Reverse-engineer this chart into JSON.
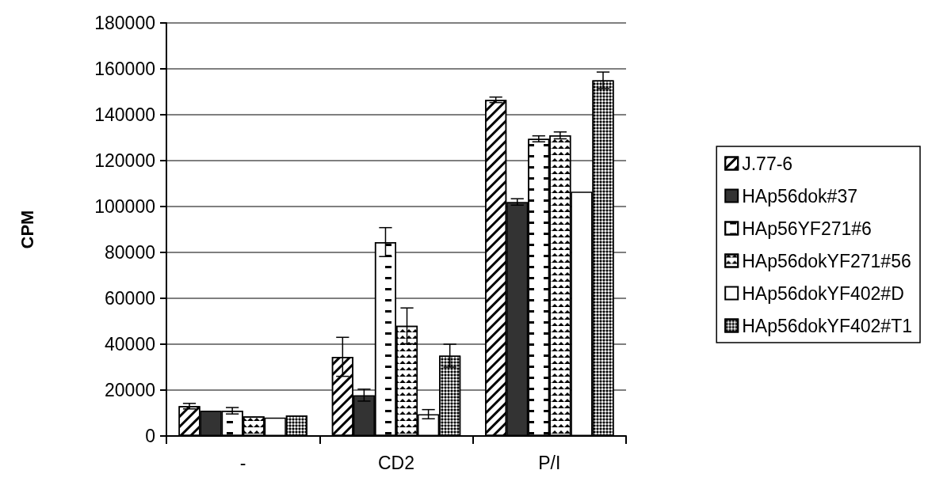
{
  "chart_data": {
    "type": "bar",
    "ylabel": "CPM",
    "categories": [
      "-",
      "CD2",
      "P/I"
    ],
    "series": [
      {
        "name": "J.77-6",
        "color": "#ffffff",
        "values": [
          13000,
          34500,
          146500
        ],
        "errors": [
          1200,
          8500,
          1200
        ]
      },
      {
        "name": "HAp56dok#37",
        "color": "#333333",
        "values": [
          11000,
          17800,
          102000
        ],
        "errors": [
          null,
          2600,
          1400
        ]
      },
      {
        "name": "HAp56YF271#6",
        "color": "#ffffff",
        "values": [
          11000,
          84500,
          129500
        ],
        "errors": [
          1400,
          6300,
          1300
        ]
      },
      {
        "name": "HAp56dokYF271#56",
        "color": "#ffffff",
        "values": [
          8500,
          48000,
          131000
        ],
        "errors": [
          null,
          7800,
          1500
        ]
      },
      {
        "name": "HAp56dokYF402#D",
        "color": "#ffffff",
        "values": [
          8000,
          9500,
          106500
        ],
        "errors": [
          null,
          2000,
          null
        ]
      },
      {
        "name": "HAp56dokYF402#T1",
        "color": "#ffffff",
        "values": [
          9000,
          35000,
          155000
        ],
        "errors": [
          null,
          5000,
          3600
        ]
      }
    ],
    "ylim": [
      0,
      180000
    ],
    "yticks": [
      0,
      20000,
      40000,
      60000,
      80000,
      100000,
      120000,
      140000,
      160000,
      180000
    ],
    "grid": "y",
    "legend": "right"
  }
}
